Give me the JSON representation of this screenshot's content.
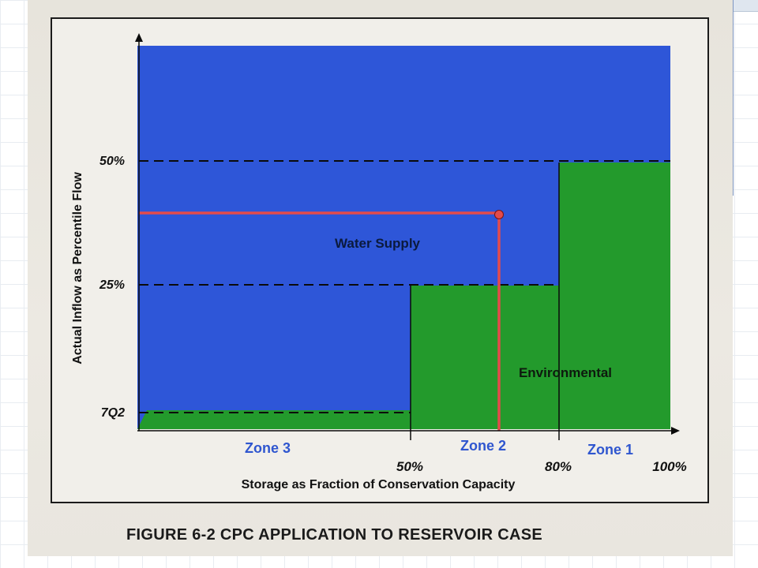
{
  "caption": "FIGURE 6-2   CPC APPLICATION TO RESERVOIR CASE",
  "diagram": {
    "y_axis_label": "Actual Inflow as Percentile Flow",
    "x_axis_label": "Storage as Fraction of Conservation Capacity",
    "y_ticks": [
      "50%",
      "25%",
      "7Q2"
    ],
    "x_ticks": [
      "50%",
      "80%",
      "100%"
    ],
    "zones": [
      "Zone 3",
      "Zone 2",
      "Zone 1"
    ],
    "regions": {
      "water_supply": "Water Supply",
      "environmental": "Environmental"
    }
  },
  "colors": {
    "water_supply": "#2e56d8",
    "environmental": "#239a2c",
    "operating_point": "#e34b4b",
    "zone_label": "#2f56cf"
  }
}
